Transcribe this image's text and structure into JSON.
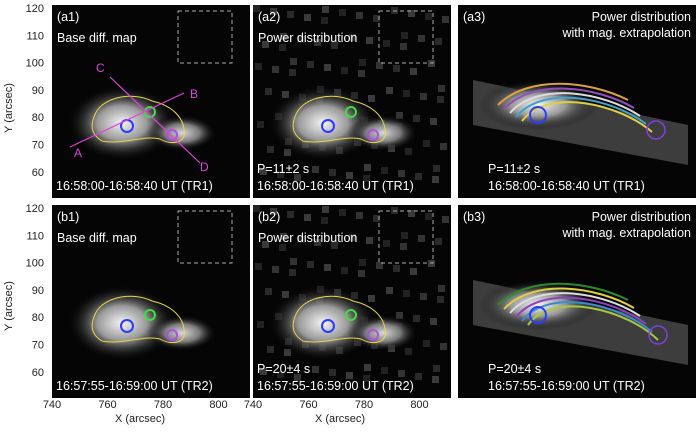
{
  "y_axis": {
    "label": "Y (arcsec)",
    "ticks": [
      "120",
      "110",
      "100",
      "90",
      "80",
      "70",
      "60"
    ]
  },
  "x_axis": {
    "label": "X (arcsec)",
    "ticks": [
      "740",
      "760",
      "780",
      "800"
    ]
  },
  "panels": [
    {
      "id": "(a1)",
      "title": [
        "Base diff. map"
      ],
      "footer": [
        "16:58:00-16:58:40 UT (TR1)"
      ],
      "labels": [
        "A",
        "B",
        "C",
        "D"
      ]
    },
    {
      "id": "(a2)",
      "title": [
        "Power distribution"
      ],
      "footer": [
        "P=11±2 s",
        "16:58:00-16:58:40 UT (TR1)"
      ]
    },
    {
      "id": "(a3)",
      "title": [
        "Power distribution",
        "with mag. extrapolation"
      ],
      "footer": [
        "P=11±2 s",
        "16:58:00-16:58:40 UT (TR1)"
      ]
    },
    {
      "id": "(b1)",
      "title": [
        "Base diff. map"
      ],
      "footer": [
        "16:57:55-16:59:00 UT (TR2)"
      ]
    },
    {
      "id": "(b2)",
      "title": [
        "Power distribution"
      ],
      "footer": [
        "P=20±4 s",
        "16:57:55-16:59:00 UT (TR2)"
      ]
    },
    {
      "id": "(b3)",
      "title": [
        "Power distribution",
        "with mag. extrapolation"
      ],
      "footer": [
        "P=20±4 s",
        "16:57:55-16:59:00 UT (TR2)"
      ]
    }
  ]
}
